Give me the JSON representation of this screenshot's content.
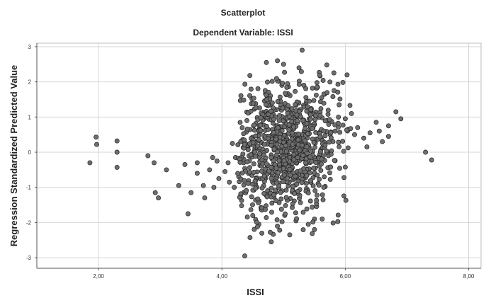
{
  "chart_data": {
    "type": "scatter",
    "title": "Scatterplot",
    "subtitle": "Dependent Variable: ISSI",
    "xlabel": "ISSI",
    "ylabel": "Regression Standardized Predicted Value",
    "xlim": [
      1.0,
      8.2
    ],
    "ylim": [
      -3.3,
      3.1
    ],
    "xticks": [
      "2,00",
      "4,00",
      "6,00",
      "8,00"
    ],
    "xtick_values": [
      2,
      4,
      6,
      8
    ],
    "yticks": [
      "3",
      "2",
      "1",
      "0",
      "-1",
      "-2",
      "-3"
    ],
    "ytick_values": [
      3,
      2,
      1,
      0,
      -1,
      -2,
      -3
    ],
    "grid": true,
    "marker_color": "#6e6e6e",
    "marker_edge": "#222222",
    "points": [
      [
        1.86,
        -0.3
      ],
      [
        1.96,
        0.43
      ],
      [
        1.97,
        0.22
      ],
      [
        2.3,
        0.32
      ],
      [
        2.3,
        0.0
      ],
      [
        2.3,
        -0.43
      ],
      [
        2.8,
        -0.1
      ],
      [
        2.9,
        -0.3
      ],
      [
        2.92,
        -1.15
      ],
      [
        2.97,
        -1.3
      ],
      [
        3.1,
        -0.5
      ],
      [
        3.3,
        -0.95
      ],
      [
        3.4,
        -0.35
      ],
      [
        3.45,
        -1.75
      ],
      [
        3.5,
        -1.15
      ],
      [
        3.6,
        -0.3
      ],
      [
        3.6,
        -0.6
      ],
      [
        3.7,
        -0.95
      ],
      [
        3.72,
        -1.3
      ],
      [
        3.8,
        -0.5
      ],
      [
        3.85,
        -0.15
      ],
      [
        3.87,
        -1.0
      ],
      [
        3.92,
        -0.25
      ],
      [
        3.95,
        -0.75
      ],
      [
        4.05,
        -0.55
      ],
      [
        4.1,
        -0.3
      ],
      [
        4.12,
        -0.85
      ],
      [
        4.17,
        0.25
      ],
      [
        4.2,
        -1.0
      ],
      [
        4.22,
        -0.15
      ],
      [
        4.37,
        -2.95
      ],
      [
        4.8,
        -2.55
      ],
      [
        5.1,
        -2.35
      ],
      [
        5.5,
        -2.2
      ],
      [
        4.72,
        2.55
      ],
      [
        4.9,
        2.6
      ],
      [
        5.0,
        2.5
      ],
      [
        5.25,
        2.4
      ],
      [
        5.3,
        2.9
      ],
      [
        5.7,
        2.48
      ],
      [
        5.55,
        1.85
      ],
      [
        5.6,
        0.6
      ],
      [
        5.7,
        0.9
      ],
      [
        5.8,
        0.3
      ],
      [
        5.9,
        1.35
      ],
      [
        6.0,
        0.95
      ],
      [
        6.05,
        0.65
      ],
      [
        6.1,
        1.1
      ],
      [
        6.15,
        0.5
      ],
      [
        6.2,
        0.7
      ],
      [
        6.3,
        0.4
      ],
      [
        6.35,
        0.15
      ],
      [
        6.4,
        0.55
      ],
      [
        6.5,
        0.85
      ],
      [
        6.55,
        0.6
      ],
      [
        6.6,
        0.3
      ],
      [
        6.7,
        0.75
      ],
      [
        6.82,
        1.15
      ],
      [
        6.9,
        0.95
      ],
      [
        6.7,
        0.45
      ],
      [
        7.3,
        0.0
      ],
      [
        7.4,
        -0.22
      ],
      [
        5.5,
        -1.9
      ],
      [
        5.4,
        -2.05
      ],
      [
        5.2,
        -1.95
      ],
      [
        4.9,
        -2.1
      ],
      [
        4.6,
        -2.05
      ],
      [
        4.5,
        -1.8
      ]
    ],
    "cluster": {
      "x_center": 5.0,
      "x_spread": 0.47,
      "x_min": 4.25,
      "x_max": 6.1,
      "y_center": 0.15,
      "y_spread": 0.95,
      "y_min": -2.5,
      "y_max": 2.4,
      "count": 900,
      "seed": 17
    }
  }
}
